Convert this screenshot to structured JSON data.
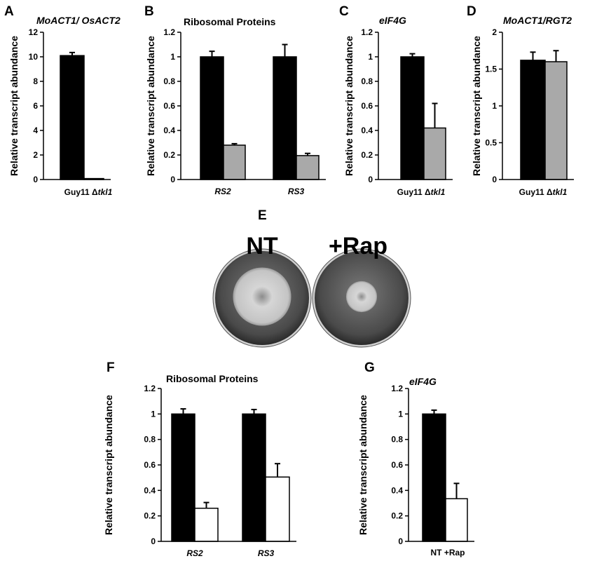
{
  "chart_data": [
    {
      "panel": "A",
      "type": "bar",
      "title": "MoACT1/ OsACT2",
      "title_italic": true,
      "ylabel": "Relative transcript abundance",
      "ylim": [
        0,
        12
      ],
      "yticks": [
        0,
        2,
        4,
        6,
        8,
        10,
        12
      ],
      "x_axis_text": [
        {
          "text": "Guy11 "
        },
        {
          "text": "Δ"
        },
        {
          "text": "tkl1",
          "italic": true
        }
      ],
      "groups": [
        {
          "label": "",
          "bars": [
            {
              "value": 10.1,
              "error": 0.25,
              "color": "#000000"
            },
            {
              "value": 0.08,
              "error": 0,
              "color": "#000000"
            }
          ]
        }
      ]
    },
    {
      "panel": "B",
      "type": "bar",
      "title": "Ribosomal Proteins",
      "title_italic": false,
      "ylabel": "Relative transcript abundance",
      "ylim": [
        0,
        1.2
      ],
      "yticks": [
        0,
        0.2,
        0.4,
        0.6,
        0.8,
        1,
        1.2
      ],
      "groups": [
        {
          "label": "RS2",
          "bars": [
            {
              "value": 1.0,
              "error": 0.045,
              "color": "#000000"
            },
            {
              "value": 0.28,
              "error": 0.012,
              "color": "#a9a9a9"
            }
          ]
        },
        {
          "label": "RS3",
          "bars": [
            {
              "value": 1.0,
              "error": 0.1,
              "color": "#000000"
            },
            {
              "value": 0.195,
              "error": 0.018,
              "color": "#a9a9a9"
            }
          ]
        }
      ]
    },
    {
      "panel": "C",
      "type": "bar",
      "title": "eIF4G",
      "title_italic": true,
      "ylabel": "Relative transcript abundance",
      "ylim": [
        0,
        1.2
      ],
      "yticks": [
        0,
        0.2,
        0.4,
        0.6,
        0.8,
        1,
        1.2
      ],
      "x_axis_text": [
        {
          "text": "Guy11 "
        },
        {
          "text": "Δ"
        },
        {
          "text": "tkl1",
          "italic": true
        }
      ],
      "groups": [
        {
          "label": "",
          "bars": [
            {
              "value": 1.0,
              "error": 0.025,
              "color": "#000000"
            },
            {
              "value": 0.42,
              "error": 0.2,
              "color": "#a9a9a9"
            }
          ]
        }
      ]
    },
    {
      "panel": "D",
      "type": "bar",
      "title": "MoACT1/RGT2",
      "title_italic": true,
      "ylabel": "Relative transcript abundance",
      "ylim": [
        0,
        2
      ],
      "yticks": [
        0,
        0.5,
        1,
        1.5,
        2
      ],
      "x_axis_text": [
        {
          "text": "Guy11 "
        },
        {
          "text": "Δ"
        },
        {
          "text": "tkl1",
          "italic": true
        }
      ],
      "groups": [
        {
          "label": "",
          "bars": [
            {
              "value": 1.62,
              "error": 0.11,
              "color": "#000000"
            },
            {
              "value": 1.6,
              "error": 0.15,
              "color": "#a9a9a9"
            }
          ]
        }
      ]
    },
    {
      "panel": "F",
      "type": "bar",
      "title": "Ribosomal Proteins",
      "title_italic": false,
      "ylabel": "Relative transcript abundance",
      "ylim": [
        0,
        1.2
      ],
      "yticks": [
        0,
        0.2,
        0.4,
        0.6,
        0.8,
        1,
        1.2
      ],
      "groups": [
        {
          "label": "RS2",
          "bars": [
            {
              "value": 1.0,
              "error": 0.04,
              "color": "#000000"
            },
            {
              "value": 0.26,
              "error": 0.045,
              "color": "#ffffff"
            }
          ]
        },
        {
          "label": "RS3",
          "bars": [
            {
              "value": 1.0,
              "error": 0.035,
              "color": "#000000"
            },
            {
              "value": 0.505,
              "error": 0.105,
              "color": "#ffffff"
            }
          ]
        }
      ]
    },
    {
      "panel": "G",
      "type": "bar",
      "title": "eIF4G",
      "title_italic": true,
      "ylabel": "Relative transcript abundance",
      "ylim": [
        0,
        1.2
      ],
      "yticks": [
        0,
        0.2,
        0.4,
        0.6,
        0.8,
        1,
        1.2
      ],
      "x_axis_text": [
        {
          "text": "NT  +Rap"
        }
      ],
      "groups": [
        {
          "label": "",
          "bars": [
            {
              "value": 1.0,
              "error": 0.03,
              "color": "#000000"
            },
            {
              "value": 0.335,
              "error": 0.12,
              "color": "#ffffff"
            }
          ]
        }
      ]
    }
  ],
  "plates": {
    "panel": "E",
    "labels": [
      "NT",
      "+Rap"
    ],
    "colony_size": [
      0.62,
      0.33
    ]
  }
}
